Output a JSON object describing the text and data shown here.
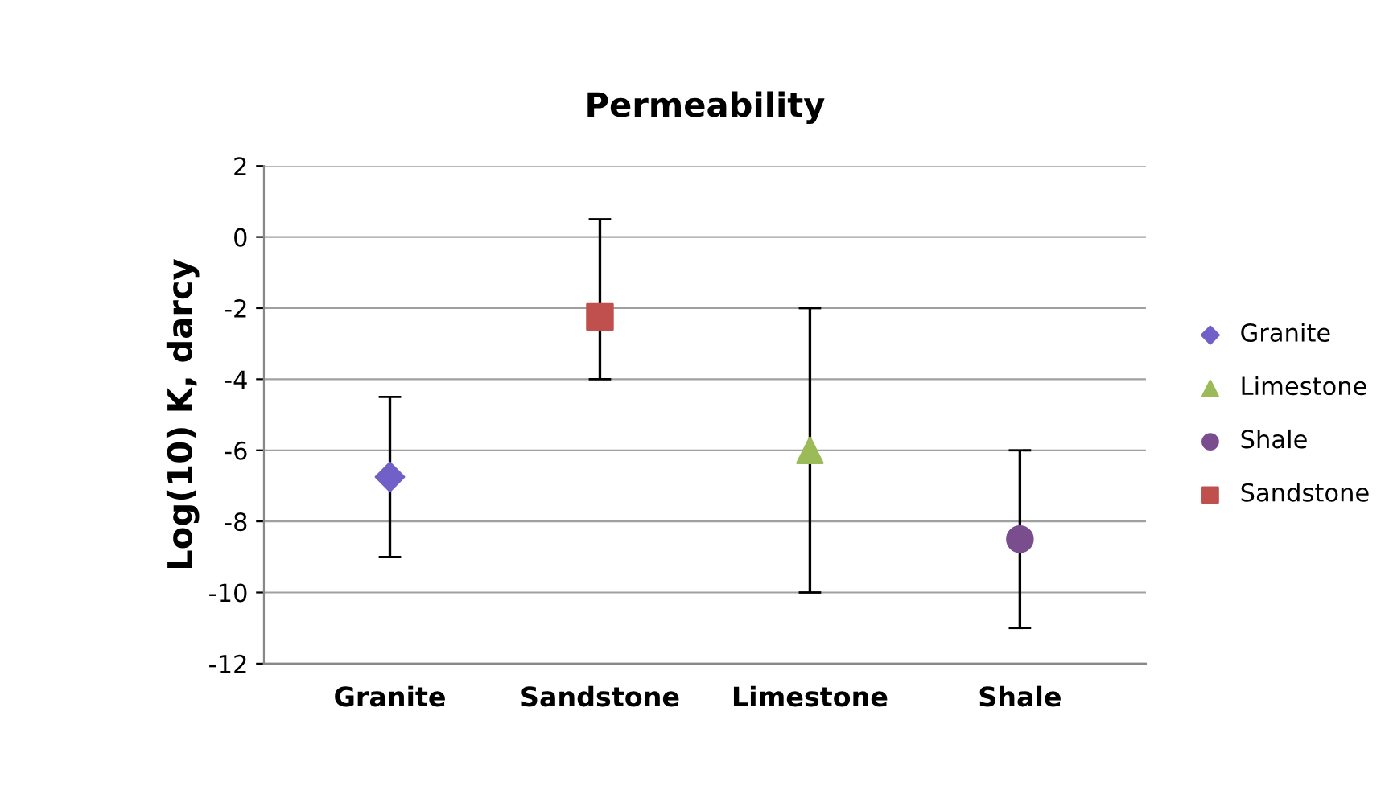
{
  "chart_data": {
    "type": "scatter",
    "title": "Permeability",
    "ylabel": "Log(10) K, darcy",
    "categories": [
      "Granite",
      "Sandstone",
      "Limestone",
      "Shale"
    ],
    "series": [
      {
        "name": "Granite",
        "color": "#7060c8",
        "marker": "diamond",
        "x": [
          "Granite"
        ],
        "values": [
          -6.75
        ],
        "errors": [
          [
            -9,
            -4.5
          ]
        ]
      },
      {
        "name": "Limestone",
        "color": "#9bbb59",
        "marker": "triangle",
        "x": [
          "Limestone"
        ],
        "values": [
          -6
        ],
        "errors": [
          [
            -10,
            -2
          ]
        ]
      },
      {
        "name": "Shale",
        "color": "#7a4e8e",
        "marker": "circle",
        "x": [
          "Shale"
        ],
        "values": [
          -8.5
        ],
        "errors": [
          [
            -11,
            -6
          ]
        ]
      },
      {
        "name": "Sandstone",
        "color": "#c0504d",
        "marker": "square",
        "x": [
          "Sandstone"
        ],
        "values": [
          -2.25
        ],
        "errors": [
          [
            -4,
            0.5
          ]
        ]
      }
    ],
    "ylim": [
      -12,
      2
    ],
    "yticks": [
      2,
      0,
      -2,
      -4,
      -6,
      -8,
      -10,
      -12
    ],
    "grid": "y",
    "legend": "right"
  }
}
